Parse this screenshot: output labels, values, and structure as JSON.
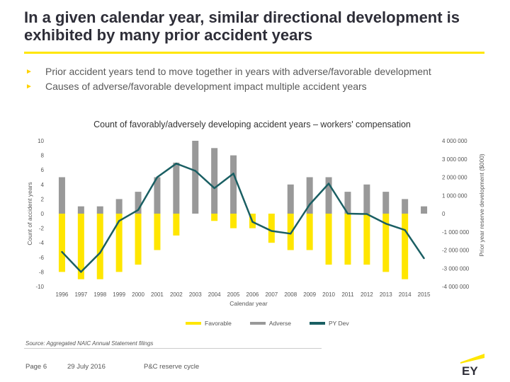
{
  "header": {
    "title": "In a given calendar year, similar directional development is exhibited by many prior accident years"
  },
  "bullets": [
    "Prior accident years tend to move together in years with adverse/favorable development",
    "Causes of adverse/favorable development impact multiple accident years"
  ],
  "chart_data": {
    "type": "bar",
    "title": "Count of favorably/adversely developing accident years – workers' compensation",
    "xlabel": "Calendar year",
    "ylabel": "Count of accident years",
    "y2label": "Prior year reserve development ($000)",
    "categories": [
      "1996",
      "1997",
      "1998",
      "1999",
      "2000",
      "2001",
      "2002",
      "2003",
      "2004",
      "2005",
      "2006",
      "2007",
      "2008",
      "2009",
      "2010",
      "2011",
      "2012",
      "2013",
      "2014",
      "2015"
    ],
    "ylim": [
      -10,
      10
    ],
    "yticks": [
      "10",
      "8",
      "6",
      "4",
      "2",
      "0",
      "-2",
      "-4",
      "-6",
      "-8",
      "-10"
    ],
    "y2lim": [
      -4000000,
      4000000
    ],
    "y2ticks": [
      "4 000 000",
      "3 000 000",
      "2 000 000",
      "1 000 000",
      "0",
      "-1 000 000",
      "-2 000 000",
      "-3 000 000",
      "-4 000 000"
    ],
    "series": [
      {
        "name": "Favorable",
        "axis": "left",
        "color": "#ffe600",
        "values": [
          -8,
          -9,
          -9,
          -8,
          -7,
          -5,
          -3,
          0,
          -1,
          -2,
          -2,
          -4,
          -5,
          -5,
          -7,
          -7,
          -7,
          -8,
          -9,
          0
        ]
      },
      {
        "name": "Adverse",
        "axis": "left",
        "color": "#999999",
        "values": [
          5,
          1,
          1,
          2,
          3,
          5,
          7,
          10,
          9,
          8,
          0,
          0,
          4,
          5,
          5,
          3,
          4,
          3,
          2,
          1
        ]
      },
      {
        "name": "PY Dev",
        "axis": "right",
        "color": "#1a5f63",
        "values": [
          -2100000,
          -3200000,
          -2150000,
          -400000,
          200000,
          2000000,
          2750000,
          2350000,
          1400000,
          2200000,
          -450000,
          -950000,
          -1100000,
          500000,
          1650000,
          0,
          -20000,
          -550000,
          -900000,
          -2450000
        ]
      }
    ],
    "legend": [
      "Favorable",
      "Adverse",
      "PY Dev"
    ]
  },
  "source": "Source: Aggregated NAIC Annual Statement filings",
  "footer": {
    "page": "Page 6",
    "date": "29 July 2016",
    "section": "P&C reserve cycle",
    "logo_text": "EY"
  },
  "colors": {
    "brand_yellow": "#ffe600",
    "adverse_gray": "#999999",
    "py_dev_teal": "#1a5f63",
    "title_dark": "#2e2e38"
  }
}
